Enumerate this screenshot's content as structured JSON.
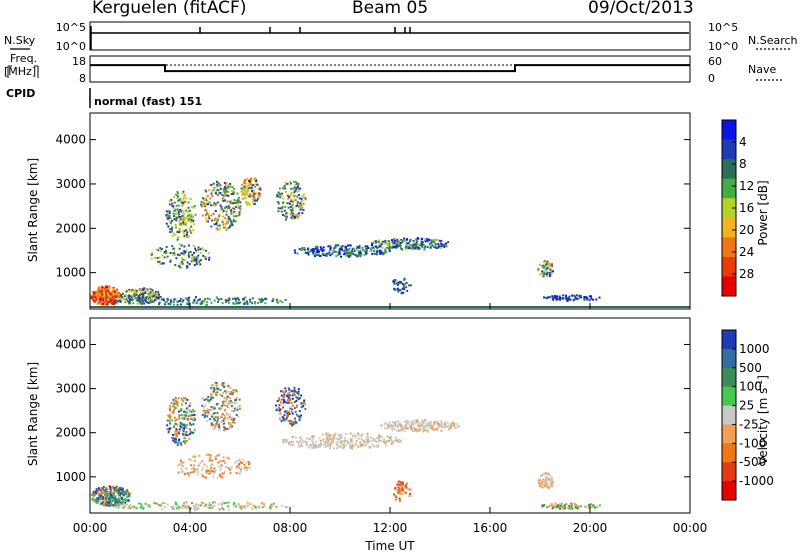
{
  "header": {
    "station": "Kerguelen (fitACF)",
    "beam": "Beam 05",
    "date": "09/Oct/2013"
  },
  "left_labels": {
    "nsky": "N.Sky",
    "freq": "Freq.",
    "freq_unit": "[MHz]",
    "cpid": "CPID"
  },
  "right_labels": {
    "nsearch": "N.Search",
    "nave": "Nave"
  },
  "cpid_text": "normal (fast) 151",
  "chart_data": [
    {
      "type": "line",
      "name": "noise",
      "y_tick_left": [
        "10^5",
        "10^0"
      ],
      "y_tick_right": [
        "10^5",
        "10^0"
      ],
      "series_left": "N.Sky",
      "series_right": "N.Search"
    },
    {
      "type": "line",
      "name": "frequency-nave",
      "y_tick_left": [
        "18",
        "8"
      ],
      "y_tick_right": [
        "60",
        "0"
      ],
      "freq_mhz_segments": [
        {
          "x": [
            "00:00",
            "03:00"
          ],
          "value": 14.5
        },
        {
          "x": [
            "03:00",
            "17:00"
          ],
          "value": 12.2
        },
        {
          "x": [
            "17:00",
            "24:00"
          ],
          "value": 14.5
        }
      ],
      "nave_level": 40
    },
    {
      "type": "heatmap",
      "name": "power",
      "xlabel": "",
      "ylabel": "Slant Range [km]",
      "yticks": [
        "1000",
        "2000",
        "3000",
        "4000"
      ],
      "ylim": [
        180,
        4600
      ],
      "colorbar_label": "Power [dB]",
      "colorbar_ticks": [
        "4",
        "8",
        "12",
        "16",
        "20",
        "24",
        "28"
      ],
      "colors": [
        "#0a14e6",
        "#1e3cb4",
        "#2d6e5a",
        "#46aa46",
        "#b4d228",
        "#f0b41e",
        "#f07814",
        "#e63c0a",
        "#e60000"
      ]
    },
    {
      "type": "heatmap",
      "name": "velocity",
      "xlabel": "Time UT",
      "ylabel": "Slant Range [km]",
      "yticks": [
        "1000",
        "2000",
        "3000",
        "4000"
      ],
      "ylim": [
        180,
        4600
      ],
      "xticks": [
        "00:00",
        "04:00",
        "08:00",
        "12:00",
        "16:00",
        "20:00",
        "00:00"
      ],
      "colorbar_label": "Velocity [m s",
      "colorbar_label_sup": "-1",
      "colorbar_label_end": "]",
      "colorbar_ticks": [
        "1000",
        "500",
        "100",
        "25",
        "-25",
        "-100",
        "-500",
        "-1000"
      ],
      "colors": [
        "#1e3cb4",
        "#326ea0",
        "#3c8c5a",
        "#46c850",
        "#c8c8c8",
        "#f0a050",
        "#f07814",
        "#e63c14",
        "#e60000"
      ]
    }
  ]
}
